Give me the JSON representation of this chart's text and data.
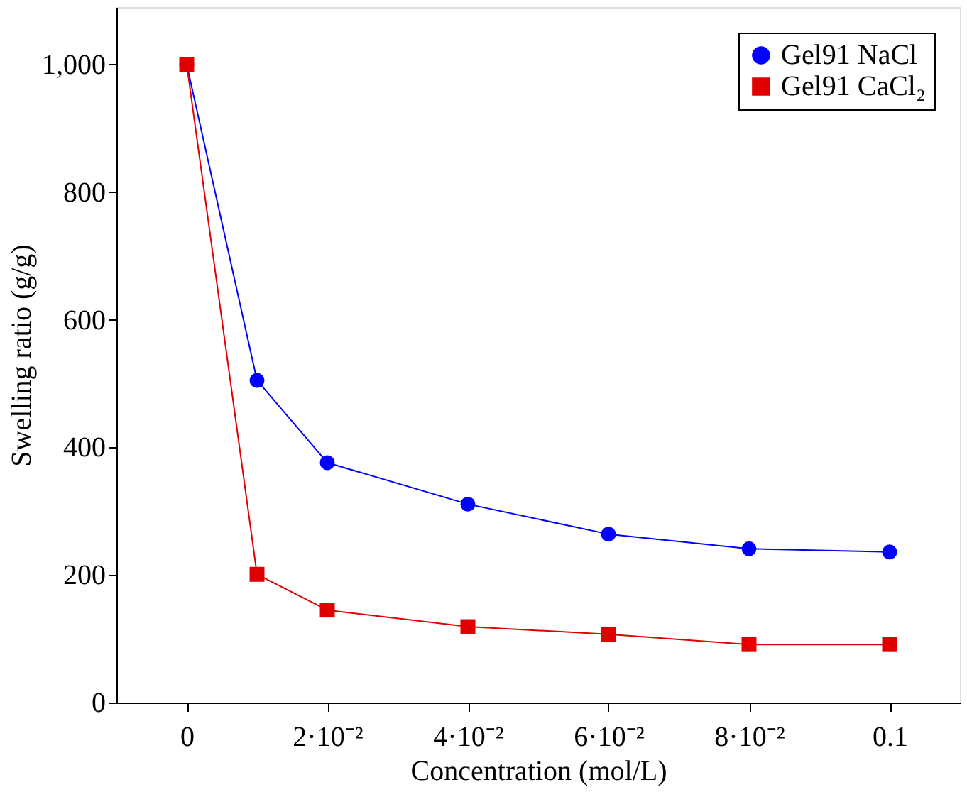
{
  "chart_data": {
    "type": "line",
    "xlabel": "Concentration (mol/L)",
    "ylabel": "Swelling ratio (g/g)",
    "x": [
      0,
      0.01,
      0.02,
      0.04,
      0.06,
      0.08,
      0.1
    ],
    "series": [
      {
        "name": "Gel91 NaCl",
        "color": "#0000ff",
        "marker": "circle",
        "values": [
          1000,
          505,
          376,
          311,
          264,
          241,
          236
        ]
      },
      {
        "name": "Gel91 CaCl₂",
        "color": "#e00000",
        "marker": "square",
        "values": [
          1000,
          201,
          145,
          119,
          107,
          91,
          91
        ]
      }
    ],
    "xlim": [
      -0.01,
      0.11
    ],
    "ylim": [
      0,
      1090
    ],
    "xticks": [
      0,
      {
        "value": 0.02,
        "label": "2·10⁻²"
      },
      {
        "value": 0.04,
        "label": "4·10⁻²"
      },
      {
        "value": 0.06,
        "label": "6·10⁻²"
      },
      {
        "value": 0.08,
        "label": "8·10⁻²"
      },
      0.1
    ],
    "yticks": [
      0,
      200,
      400,
      600,
      800,
      {
        "value": 1000,
        "label": "1,000"
      }
    ],
    "legend": "top right",
    "grid": false,
    "line_style": "solid"
  }
}
